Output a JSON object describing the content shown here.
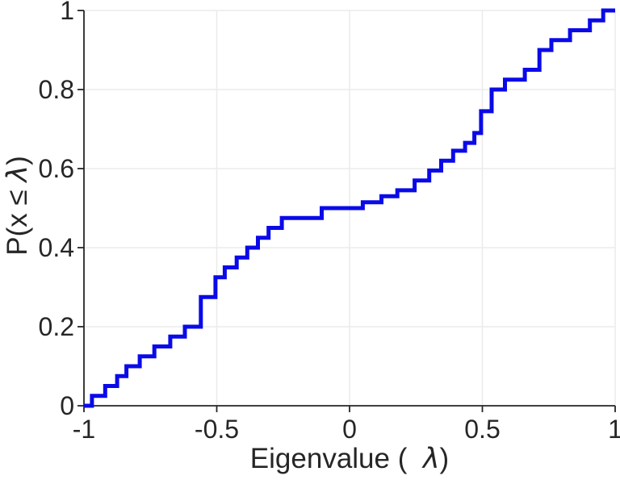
{
  "figure": {
    "background": "#ffffff",
    "line_color": "#0a0ae8",
    "grid_color": "#ebebeb",
    "axis_color": "#262626",
    "text_color": "#262626"
  },
  "labels": {
    "xlabel_pre": "Eigenvalue (  ",
    "xlabel_lambda": "λ",
    "xlabel_post": ")",
    "ylabel_pre": "P(x ≤ ",
    "ylabel_lambda": "λ",
    "ylabel_post": ")"
  },
  "chart_data": {
    "type": "line",
    "subtype": "empirical-cdf-staircase",
    "title": "",
    "xlabel": "Eigenvalue (  λ)",
    "ylabel": "P(x ≤ λ)",
    "xlim": [
      -1,
      1
    ],
    "ylim": [
      0,
      1
    ],
    "grid": true,
    "legend": null,
    "x_ticks": [
      -1,
      -0.5,
      0,
      0.5,
      1
    ],
    "x_tick_labels": [
      "-1",
      "-0.5",
      "0",
      "0.5",
      "1"
    ],
    "y_ticks": [
      0,
      0.2,
      0.4,
      0.6,
      0.8,
      1
    ],
    "y_tick_labels": [
      "0",
      "0.2",
      "0.4",
      "0.6",
      "0.8",
      "1"
    ],
    "start_point": [
      -1.0,
      0.0
    ],
    "end_point": [
      1.0,
      1.0
    ],
    "step_points": [
      [
        -0.97,
        0.025
      ],
      [
        -0.92,
        0.05
      ],
      [
        -0.875,
        0.075
      ],
      [
        -0.84,
        0.1
      ],
      [
        -0.79,
        0.125
      ],
      [
        -0.735,
        0.15
      ],
      [
        -0.675,
        0.175
      ],
      [
        -0.62,
        0.2
      ],
      [
        -0.56,
        0.275
      ],
      [
        -0.505,
        0.325
      ],
      [
        -0.47,
        0.35
      ],
      [
        -0.425,
        0.375
      ],
      [
        -0.385,
        0.4
      ],
      [
        -0.345,
        0.425
      ],
      [
        -0.305,
        0.45
      ],
      [
        -0.255,
        0.475
      ],
      [
        -0.105,
        0.5
      ],
      [
        0.05,
        0.515
      ],
      [
        0.12,
        0.53
      ],
      [
        0.18,
        0.545
      ],
      [
        0.245,
        0.57
      ],
      [
        0.3,
        0.595
      ],
      [
        0.345,
        0.62
      ],
      [
        0.39,
        0.645
      ],
      [
        0.435,
        0.665
      ],
      [
        0.47,
        0.69
      ],
      [
        0.495,
        0.745
      ],
      [
        0.535,
        0.8
      ],
      [
        0.585,
        0.825
      ],
      [
        0.66,
        0.85
      ],
      [
        0.715,
        0.9
      ],
      [
        0.76,
        0.925
      ],
      [
        0.83,
        0.95
      ],
      [
        0.905,
        0.975
      ],
      [
        0.955,
        1.0
      ]
    ]
  }
}
